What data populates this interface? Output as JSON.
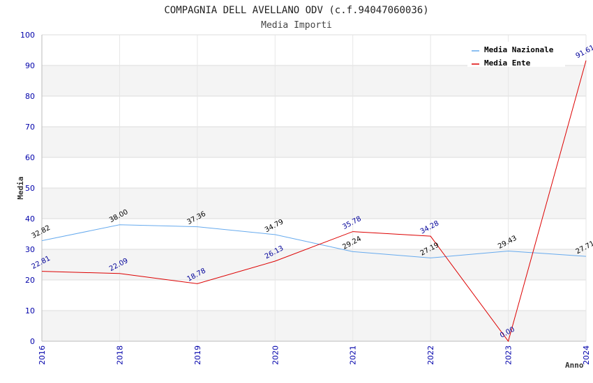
{
  "chart_data": {
    "type": "line",
    "title": "COMPAGNIA DELL AVELLANO ODV (c.f.94047060036)",
    "subtitle": "Media Importi",
    "xlabel": "Anno",
    "ylabel": "Media",
    "categories": [
      "2016",
      "2018",
      "2019",
      "2020",
      "2021",
      "2022",
      "2023",
      "2024"
    ],
    "ylim": [
      0,
      100
    ],
    "yticks": [
      0,
      10,
      20,
      30,
      40,
      50,
      60,
      70,
      80,
      90,
      100
    ],
    "ytick_labels": [
      "0",
      "10",
      "20",
      "30",
      "40",
      "50",
      "60",
      "70",
      "80",
      "90",
      "100"
    ],
    "grid": true,
    "legend_position": "top-right",
    "series": [
      {
        "name": "Media Nazionale",
        "color": "#66aaee",
        "label_color": "#000000",
        "values": [
          32.82,
          38.0,
          37.36,
          34.79,
          29.24,
          27.19,
          29.43,
          27.71
        ],
        "labels": [
          "32.82",
          "38.00",
          "37.36",
          "34.79",
          "29.24",
          "27.19",
          "29.43",
          "27.71"
        ]
      },
      {
        "name": "Media Ente",
        "color": "#dd0000",
        "label_color": "#000099",
        "values": [
          22.81,
          22.09,
          18.78,
          26.13,
          35.78,
          34.28,
          0.0,
          91.61
        ],
        "labels": [
          "22.81",
          "22.09",
          "18.78",
          "26.13",
          "35.78",
          "34.28",
          "0.00",
          "91.61"
        ]
      }
    ]
  }
}
